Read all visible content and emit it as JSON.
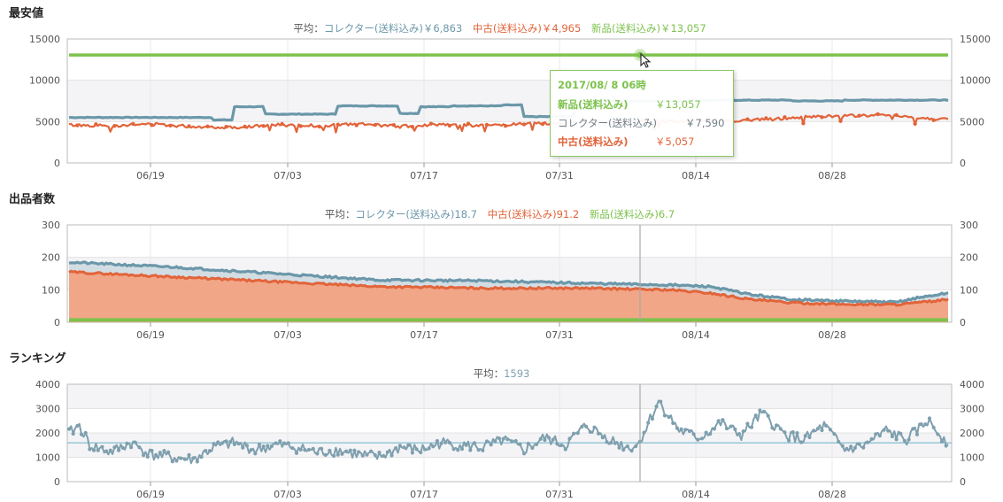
{
  "colors": {
    "collector": "#6b97a9",
    "used": "#e2643a",
    "new": "#7cc24c",
    "rank": "#7e9fae",
    "grid": "#e6e6e6"
  },
  "x_labels": [
    "06/19",
    "07/03",
    "07/17",
    "07/31",
    "08/14",
    "08/28"
  ],
  "price": {
    "title": "最安値",
    "legend": {
      "avg_label": "平均：",
      "collector": "コレクター(送料込み)￥6,863",
      "used": "中古(送料込み)￥4,965",
      "new": "新品(送料込み)￥13,057"
    },
    "tooltip": {
      "date": "2017/08/ 8 06時",
      "rows": [
        {
          "label": "新品(送料込み)",
          "value": "￥13,057",
          "color": "#7cc24c",
          "bold": true
        },
        {
          "label": "コレクター(送料込み)",
          "value": "￥7,590",
          "color": "#6f7f87",
          "bold": false
        },
        {
          "label": "中古(送料込み)",
          "value": "￥5,057",
          "color": "#e2643a",
          "bold": true
        }
      ]
    }
  },
  "offers": {
    "title": "出品者数",
    "legend": {
      "avg_label": "平均：",
      "collector": "コレクター(送料込み)18.7",
      "used": "中古(送料込み)91.2",
      "new": "新品(送料込み)6.7"
    }
  },
  "ranking": {
    "title": "ランキング",
    "legend": {
      "avg_label": "平均：",
      "avg": "1593"
    }
  },
  "chart_data": [
    {
      "type": "line",
      "title": "最安値",
      "x_ticks": [
        "06/19",
        "07/03",
        "07/17",
        "07/31",
        "08/14",
        "08/28"
      ],
      "x_range_days": [
        0,
        85
      ],
      "ylim": [
        0,
        15000
      ],
      "y_ticks": [
        0,
        5000,
        10000,
        15000
      ],
      "series": [
        {
          "name": "新品(送料込み)",
          "x": [
            0,
            85
          ],
          "values": [
            13057,
            13057
          ]
        },
        {
          "name": "コレクター(送料込み)",
          "x": [
            0,
            8,
            14,
            16,
            19,
            21,
            26,
            28,
            32,
            34,
            37,
            42,
            44,
            49,
            51,
            56,
            60,
            63,
            67,
            70,
            75,
            79,
            85
          ],
          "values": [
            5500,
            5500,
            5200,
            6800,
            5900,
            5900,
            6900,
            6900,
            6000,
            6800,
            6900,
            7000,
            5600,
            6800,
            7500,
            7500,
            7590,
            7590,
            7600,
            7500,
            7600,
            7600,
            7500
          ]
        },
        {
          "name": "中古(送料込み)",
          "x": [
            0,
            4,
            8,
            12,
            16,
            20,
            24,
            28,
            32,
            36,
            40,
            44,
            48,
            52,
            56,
            60,
            64,
            68,
            72,
            76,
            80,
            82,
            85
          ],
          "values": [
            4600,
            4500,
            4700,
            4400,
            4300,
            4600,
            4500,
            4700,
            4400,
            4700,
            4500,
            4700,
            4800,
            5000,
            5100,
            5057,
            5100,
            5300,
            5600,
            5700,
            5800,
            5400,
            5300
          ]
        }
      ]
    },
    {
      "type": "area",
      "title": "出品者数",
      "x_ticks": [
        "06/19",
        "07/03",
        "07/17",
        "07/31",
        "08/14",
        "08/28"
      ],
      "x_range_days": [
        0,
        85
      ],
      "ylim": [
        0,
        300
      ],
      "y_ticks": [
        0,
        100,
        200,
        300
      ],
      "series": [
        {
          "name": "コレクター(送料込み)",
          "x": [
            0,
            10,
            20,
            30,
            40,
            50,
            58,
            62,
            66,
            70,
            75,
            80,
            82,
            85
          ],
          "values": [
            185,
            170,
            150,
            130,
            128,
            120,
            115,
            110,
            85,
            70,
            65,
            62,
            75,
            90
          ]
        },
        {
          "name": "中古(送料込み)",
          "x": [
            0,
            10,
            20,
            30,
            40,
            50,
            58,
            62,
            66,
            70,
            75,
            80,
            82,
            85
          ],
          "values": [
            155,
            140,
            125,
            110,
            105,
            105,
            100,
            90,
            70,
            60,
            55,
            55,
            60,
            70
          ]
        },
        {
          "name": "新品(送料込み)",
          "x": [
            0,
            85
          ],
          "values": [
            7,
            7
          ]
        }
      ]
    },
    {
      "type": "line",
      "title": "ランキング",
      "x_ticks": [
        "06/19",
        "07/03",
        "07/17",
        "07/31",
        "08/14",
        "08/28"
      ],
      "x_range_days": [
        0,
        85
      ],
      "ylim": [
        0,
        4000
      ],
      "y_ticks": [
        0,
        1000,
        2000,
        3000,
        4000
      ],
      "average": 1593,
      "series": [
        {
          "name": "ランキング",
          "x": [
            0,
            1,
            2,
            4,
            6,
            8,
            10,
            12,
            14,
            16,
            18,
            20,
            22,
            24,
            26,
            28,
            30,
            32,
            34,
            36,
            38,
            40,
            42,
            44,
            46,
            48,
            50,
            52,
            54,
            55,
            57,
            59,
            61,
            63,
            65,
            67,
            69,
            71,
            73,
            75,
            77,
            79,
            81,
            83,
            85
          ],
          "values": [
            2000,
            2300,
            1500,
            1200,
            1600,
            1100,
            1000,
            900,
            1400,
            1600,
            1300,
            1500,
            1400,
            1200,
            1300,
            1100,
            1000,
            1400,
            1300,
            1600,
            1500,
            1400,
            1700,
            1300,
            1800,
            1500,
            2300,
            1800,
            1400,
            1500,
            3300,
            2100,
            1800,
            2400,
            1900,
            2800,
            2000,
            1700,
            2300,
            1300,
            1500,
            2100,
            1700,
            2500,
            1600
          ]
        }
      ]
    }
  ]
}
